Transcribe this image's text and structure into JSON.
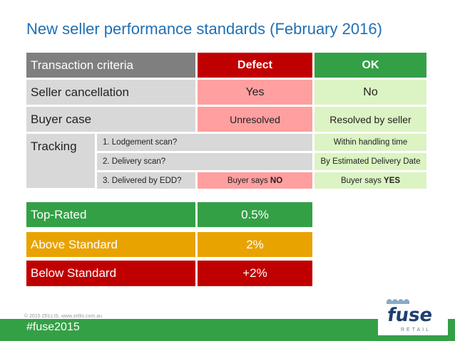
{
  "title": "New seller performance standards (February 2016)",
  "table": {
    "header": {
      "criteria": "Transaction criteria",
      "defect": "Defect",
      "ok": "OK"
    },
    "rows": [
      {
        "criteria": "Seller cancellation",
        "defect": "Yes",
        "ok": "No"
      },
      {
        "criteria": "Buyer case",
        "defect": "Unresolved",
        "ok": "Resolved by seller"
      }
    ],
    "tracking": {
      "label": "Tracking",
      "sub": [
        {
          "label": "1. Lodgement scan?",
          "ok": "Within handling time"
        },
        {
          "label": "2. Delivery scan?",
          "ok": "By Estimated Delivery Date"
        },
        {
          "label": "3. Delivered by EDD?",
          "defect_prefix": "Buyer says ",
          "defect_emph": "NO",
          "ok_prefix": "Buyer says ",
          "ok_emph": "YES"
        }
      ]
    }
  },
  "levels": [
    {
      "name": "Top-Rated",
      "rate": "0.5%"
    },
    {
      "name": "Above Standard",
      "rate": "2%"
    },
    {
      "name": "Below Standard",
      "rate": "+2%"
    }
  ],
  "footer": {
    "copyright": "© 2015 ZELLIS. www.zellis.com.au",
    "hashtag": "#fuse2015"
  },
  "logo": {
    "word": "fuse",
    "sub": "RETAIL"
  },
  "colors": {
    "title": "#1f6fb3",
    "dark_gray": "#7f7f7f",
    "light_gray": "#d8d8d8",
    "red": "#c00000",
    "pink": "#ff9f9f",
    "green": "#34a046",
    "light_green": "#dcf3c3",
    "orange": "#e8a300",
    "white": "#ffffff"
  }
}
